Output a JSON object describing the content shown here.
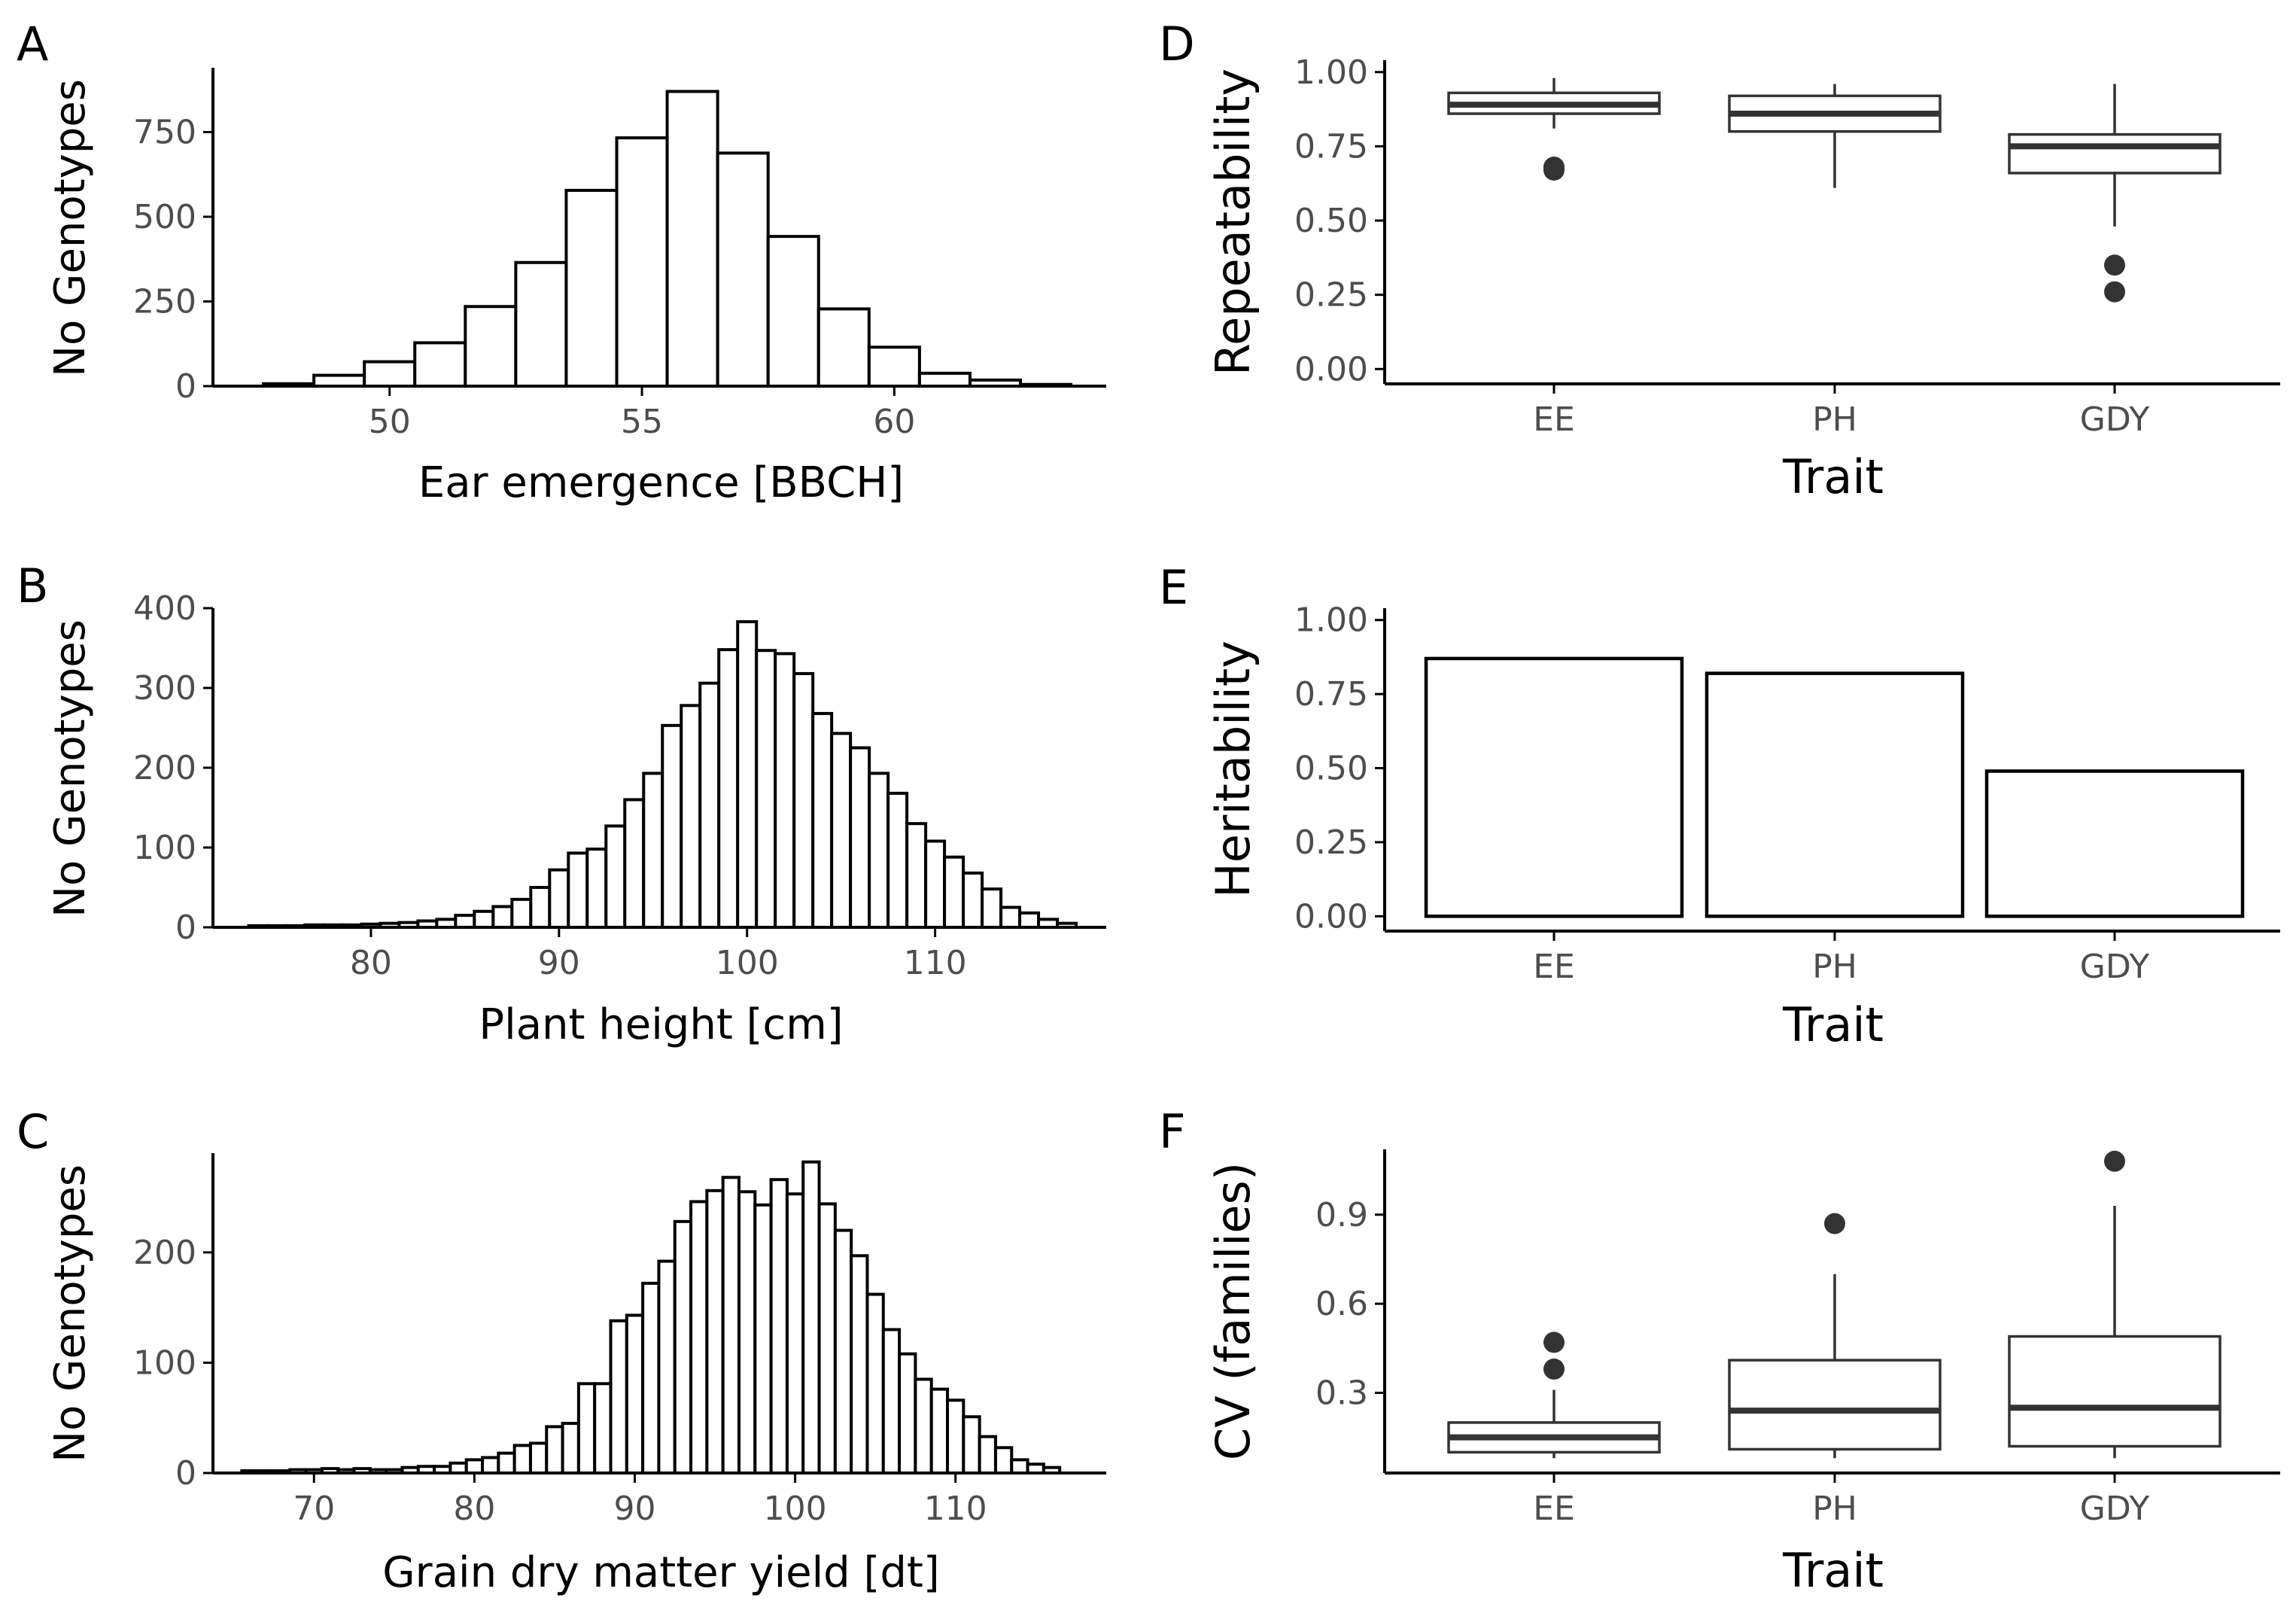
{
  "chart_data": [
    {
      "panel": "A",
      "type": "bar",
      "xlabel": "Ear emergence [BBCH]",
      "ylabel": "No Genotypes",
      "xlim": [
        46.5,
        64.2
      ],
      "ylim": [
        0,
        940
      ],
      "xticks": [
        50,
        55,
        60
      ],
      "yticks": [
        0,
        250,
        500,
        750
      ],
      "binwidth": 1,
      "centers": [
        48,
        49,
        50,
        51,
        52,
        53,
        54,
        55,
        56,
        57,
        58,
        59,
        60,
        61,
        62,
        63
      ],
      "values": [
        7,
        32,
        72,
        128,
        235,
        365,
        578,
        733,
        870,
        688,
        442,
        228,
        115,
        38,
        18,
        5
      ]
    },
    {
      "panel": "B",
      "type": "bar",
      "xlabel": "Plant height [cm]",
      "ylabel": "No Genotypes",
      "xlim": [
        71.6,
        119.1
      ],
      "ylim": [
        0,
        400
      ],
      "xticks": [
        80,
        90,
        100,
        110
      ],
      "yticks": [
        0,
        100,
        200,
        300,
        400
      ],
      "binwidth": 1,
      "centers": [
        74,
        75,
        76,
        77,
        78,
        79,
        80,
        81,
        82,
        83,
        84,
        85,
        86,
        87,
        88,
        89,
        90,
        91,
        92,
        93,
        94,
        95,
        96,
        97,
        98,
        99,
        100,
        101,
        102,
        103,
        104,
        105,
        106,
        107,
        108,
        109,
        110,
        111,
        112,
        113,
        114,
        115,
        116,
        117
      ],
      "values": [
        2,
        2,
        2,
        3,
        3,
        3,
        4,
        5,
        6,
        8,
        10,
        15,
        20,
        26,
        35,
        50,
        72,
        93,
        98,
        127,
        160,
        193,
        253,
        278,
        306,
        348,
        383,
        347,
        343,
        318,
        268,
        243,
        225,
        193,
        168,
        130,
        108,
        88,
        68,
        48,
        25,
        18,
        10,
        5
      ]
    },
    {
      "panel": "C",
      "type": "bar",
      "xlabel": "Grain dry matter yield [dt]",
      "ylabel": "No Genotypes",
      "xlim": [
        63.7,
        119.4
      ],
      "ylim": [
        0,
        290
      ],
      "xticks": [
        70,
        80,
        90,
        100,
        110
      ],
      "yticks": [
        0,
        100,
        200
      ],
      "binwidth": 1,
      "centers": [
        66,
        67,
        68,
        69,
        70,
        71,
        72,
        73,
        74,
        75,
        76,
        77,
        78,
        79,
        80,
        81,
        82,
        83,
        84,
        85,
        86,
        87,
        88,
        89,
        90,
        91,
        92,
        93,
        94,
        95,
        96,
        97,
        98,
        99,
        100,
        101,
        102,
        103,
        104,
        105,
        106,
        107,
        108,
        109,
        110,
        111,
        112,
        113,
        114,
        115,
        116
      ],
      "values": [
        2,
        2,
        2,
        3,
        3,
        4,
        3,
        4,
        3,
        3,
        5,
        6,
        6,
        9,
        12,
        14,
        18,
        25,
        27,
        42,
        45,
        81,
        81,
        138,
        143,
        172,
        192,
        228,
        246,
        256,
        268,
        255,
        243,
        266,
        253,
        282,
        244,
        220,
        197,
        162,
        130,
        108,
        85,
        76,
        66,
        51,
        33,
        23,
        12,
        8,
        5
      ]
    },
    {
      "panel": "D",
      "type": "box",
      "xlabel": "Trait",
      "ylabel": "Repeatability",
      "ylim": [
        -0.05,
        1.04
      ],
      "yticks": [
        0,
        0.25,
        0.5,
        0.75,
        1.0
      ],
      "ytick_labels": [
        "0.00",
        "0.25",
        "0.50",
        "0.75",
        "1.00"
      ],
      "categories": [
        "EE",
        "PH",
        "GDY"
      ],
      "series": [
        {
          "name": "EE",
          "q1": 0.86,
          "median": 0.89,
          "q3": 0.93,
          "lower": 0.81,
          "upper": 0.98,
          "outliers": [
            0.68,
            0.67
          ]
        },
        {
          "name": "PH",
          "q1": 0.8,
          "median": 0.86,
          "q3": 0.92,
          "lower": 0.61,
          "upper": 0.96,
          "outliers": []
        },
        {
          "name": "GDY",
          "q1": 0.66,
          "median": 0.75,
          "q3": 0.79,
          "lower": 0.48,
          "upper": 0.96,
          "outliers": [
            0.35,
            0.26
          ]
        }
      ]
    },
    {
      "panel": "E",
      "type": "bar",
      "xlabel": "Trait",
      "ylabel": "Heritability",
      "ylim": [
        -0.05,
        1.04
      ],
      "yticks": [
        0,
        0.25,
        0.5,
        0.75,
        1.0
      ],
      "ytick_labels": [
        "0.00",
        "0.25",
        "0.50",
        "0.75",
        "1.00"
      ],
      "categories": [
        "EE",
        "PH",
        "GDY"
      ],
      "values": [
        0.87,
        0.82,
        0.49
      ]
    },
    {
      "panel": "F",
      "type": "box",
      "xlabel": "Trait",
      "ylabel": "CV (families)",
      "ylim": [
        0.03,
        1.12
      ],
      "yticks": [
        0.3,
        0.6,
        0.9
      ],
      "ytick_labels": [
        "0.3",
        "0.6",
        "0.9"
      ],
      "categories": [
        "EE",
        "PH",
        "GDY"
      ],
      "series": [
        {
          "name": "EE",
          "q1": 0.1,
          "median": 0.15,
          "q3": 0.2,
          "lower": 0.08,
          "upper": 0.31,
          "outliers": [
            0.38,
            0.47
          ]
        },
        {
          "name": "PH",
          "q1": 0.11,
          "median": 0.24,
          "q3": 0.41,
          "lower": 0.08,
          "upper": 0.7,
          "outliers": [
            0.87
          ]
        },
        {
          "name": "GDY",
          "q1": 0.12,
          "median": 0.25,
          "q3": 0.49,
          "lower": 0.08,
          "upper": 0.93,
          "outliers": [
            1.08
          ]
        }
      ]
    }
  ]
}
